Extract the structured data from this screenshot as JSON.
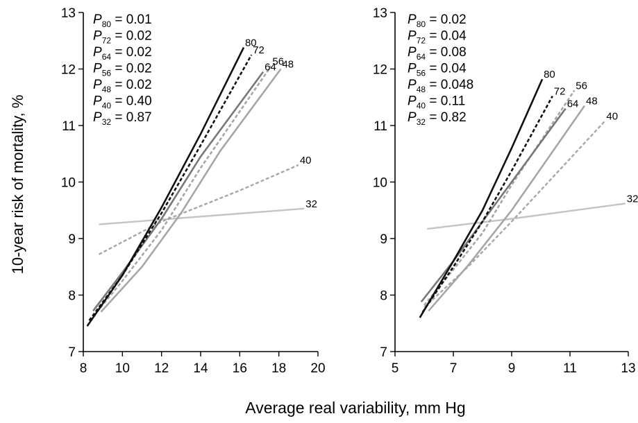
{
  "figure": {
    "ylabel": "10-year risk of mortality, %",
    "xlabel": "Average real variability, mm Hg"
  },
  "styles": {
    "80": {
      "color": "#111111",
      "dash": "solid",
      "width": 2.6
    },
    "72": {
      "color": "#111111",
      "dash": "dashed",
      "width": 2.6
    },
    "64": {
      "color": "#777777",
      "dash": "solid",
      "width": 2.6
    },
    "56": {
      "color": "#a6a6a6",
      "dash": "dashed",
      "width": 2.6
    },
    "48": {
      "color": "#a6a6a6",
      "dash": "solid",
      "width": 2.6
    },
    "40": {
      "color": "#a6a6a6",
      "dash": "dashed",
      "width": 2.4
    },
    "32": {
      "color": "#c4c4c4",
      "dash": "solid",
      "width": 2.4
    }
  },
  "chart_data": [
    {
      "type": "line",
      "title": "",
      "xlabel": "Average real variability, mm Hg",
      "ylabel": "10-year risk of mortality, %",
      "xlim": [
        8,
        20
      ],
      "ylim": [
        7,
        13
      ],
      "xticks": [
        8,
        10,
        12,
        14,
        16,
        18,
        20
      ],
      "yticks": [
        7,
        8,
        9,
        10,
        11,
        12,
        13
      ],
      "grid": false,
      "legend": "none",
      "pvalues": [
        {
          "sub": "80",
          "value": "0.01"
        },
        {
          "sub": "72",
          "value": "0.02"
        },
        {
          "sub": "64",
          "value": "0.02"
        },
        {
          "sub": "56",
          "value": "0.02"
        },
        {
          "sub": "48",
          "value": "0.02"
        },
        {
          "sub": "40",
          "value": "0.40"
        },
        {
          "sub": "32",
          "value": "0.87"
        }
      ],
      "series": [
        {
          "name": "80",
          "x": [
            8.2,
            10,
            12,
            14,
            16.2
          ],
          "y": [
            7.45,
            8.35,
            9.55,
            10.85,
            12.38
          ]
        },
        {
          "name": "72",
          "x": [
            8.3,
            10,
            12,
            14,
            16.6
          ],
          "y": [
            7.55,
            8.35,
            9.45,
            10.65,
            12.25
          ]
        },
        {
          "name": "64",
          "x": [
            8.5,
            10,
            12,
            14,
            17.2
          ],
          "y": [
            7.72,
            8.4,
            9.35,
            10.45,
            11.95
          ]
        },
        {
          "name": "56",
          "x": [
            8.7,
            10,
            12,
            14,
            17.6
          ],
          "y": [
            7.7,
            8.25,
            9.15,
            10.25,
            12.05
          ]
        },
        {
          "name": "48",
          "x": [
            8.9,
            11,
            13,
            15,
            18.1
          ],
          "y": [
            7.7,
            8.5,
            9.45,
            10.55,
            12.0
          ]
        },
        {
          "name": "40",
          "x": [
            8.8,
            12,
            16,
            19
          ],
          "y": [
            8.72,
            9.3,
            9.85,
            10.3
          ]
        },
        {
          "name": "32",
          "x": [
            8.8,
            19.3
          ],
          "y": [
            9.25,
            9.53
          ]
        }
      ]
    },
    {
      "type": "line",
      "title": "",
      "xlabel": "Average real variability, mm Hg",
      "ylabel": "",
      "xlim": [
        5,
        13
      ],
      "ylim": [
        7,
        13
      ],
      "xticks": [
        5,
        7,
        9,
        11,
        13
      ],
      "yticks": [
        7,
        8,
        9,
        10,
        11,
        12,
        13
      ],
      "grid": false,
      "legend": "none",
      "pvalues": [
        {
          "sub": "80",
          "value": "0.02"
        },
        {
          "sub": "72",
          "value": "0.04"
        },
        {
          "sub": "64",
          "value": "0.08"
        },
        {
          "sub": "56",
          "value": "0.04"
        },
        {
          "sub": "48",
          "value": "0.048"
        },
        {
          "sub": "40",
          "value": "0.11"
        },
        {
          "sub": "32",
          "value": "0.82"
        }
      ],
      "series": [
        {
          "name": "80",
          "x": [
            5.85,
            7,
            8,
            9,
            10.05
          ],
          "y": [
            7.6,
            8.6,
            9.5,
            10.6,
            11.82
          ]
        },
        {
          "name": "72",
          "x": [
            5.95,
            7,
            8,
            9,
            10.4
          ],
          "y": [
            7.7,
            8.5,
            9.3,
            10.2,
            11.52
          ]
        },
        {
          "name": "64",
          "x": [
            5.9,
            7,
            8,
            9,
            10.85
          ],
          "y": [
            7.88,
            8.6,
            9.3,
            10.0,
            11.3
          ]
        },
        {
          "name": "56",
          "x": [
            6.0,
            7,
            8,
            9,
            11.15
          ],
          "y": [
            7.82,
            8.45,
            9.1,
            9.95,
            11.62
          ]
        },
        {
          "name": "48",
          "x": [
            6.15,
            7.5,
            9,
            11.5
          ],
          "y": [
            7.72,
            8.52,
            9.5,
            11.35
          ]
        },
        {
          "name": "40",
          "x": [
            6.0,
            7.5,
            9,
            12.2
          ],
          "y": [
            7.78,
            8.5,
            9.3,
            11.08
          ]
        },
        {
          "name": "32",
          "x": [
            6.1,
            9,
            12.9
          ],
          "y": [
            9.17,
            9.35,
            9.62
          ]
        }
      ]
    }
  ]
}
